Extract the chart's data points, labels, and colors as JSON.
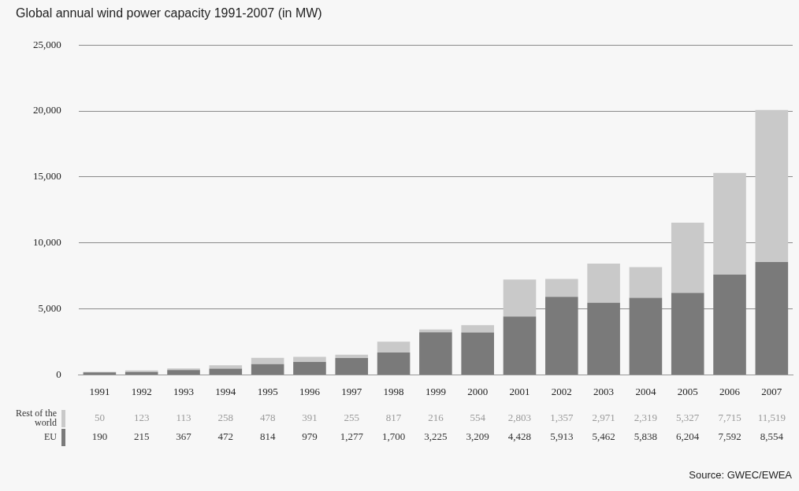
{
  "chart_data": {
    "type": "bar",
    "title": "Global annual wind power capacity 1991-2007 (in MW)",
    "categories": [
      "1991",
      "1992",
      "1993",
      "1994",
      "1995",
      "1996",
      "1997",
      "1998",
      "1999",
      "2000",
      "2001",
      "2002",
      "2003",
      "2004",
      "2005",
      "2006",
      "2007"
    ],
    "series": [
      {
        "name": "EU",
        "color": "#7a7a7a",
        "values": [
          190,
          215,
          367,
          472,
          814,
          979,
          1277,
          1700,
          3225,
          3209,
          4428,
          5913,
          5462,
          5838,
          6204,
          7592,
          8554
        ],
        "value_labels": [
          "190",
          "215",
          "367",
          "472",
          "814",
          "979",
          "1,277",
          "1,700",
          "3,225",
          "3,209",
          "4,428",
          "5,913",
          "5,462",
          "5,838",
          "6,204",
          "7,592",
          "8,554"
        ]
      },
      {
        "name": "Rest of the world",
        "color": "#c9c9c9",
        "values": [
          50,
          123,
          113,
          258,
          478,
          391,
          255,
          817,
          216,
          554,
          2803,
          1357,
          2971,
          2319,
          5327,
          7715,
          11519
        ],
        "value_labels": [
          "50",
          "123",
          "113",
          "258",
          "478",
          "391",
          "255",
          "817",
          "216",
          "554",
          "2,803",
          "1,357",
          "2,971",
          "2,319",
          "5,327",
          "7,715",
          "11,519"
        ]
      }
    ],
    "stacked": true,
    "ylim": [
      0,
      25000
    ],
    "yticks": [
      0,
      {
        "value": 5000,
        "label": "5,000"
      },
      {
        "value": 10000,
        "label": "10,000"
      },
      {
        "value": 15000,
        "label": "15,000"
      },
      {
        "value": 20000,
        "label": "20,000"
      },
      {
        "value": 25000,
        "label": "25,000"
      }
    ],
    "grid": "y",
    "legend": "bottom left",
    "annotations": [
      "Source: GWEC/EWEA"
    ]
  }
}
